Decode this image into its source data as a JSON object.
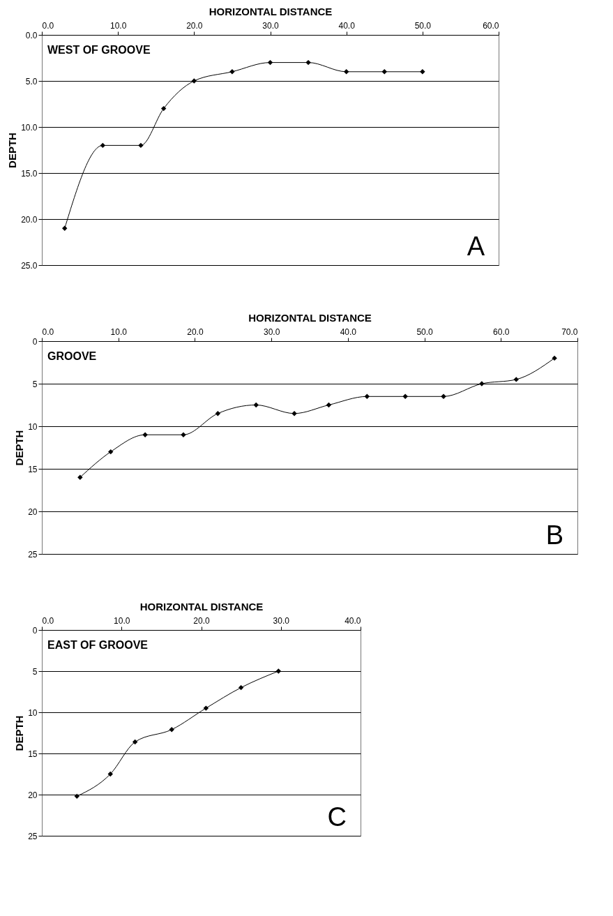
{
  "chart_data": [
    {
      "type": "line",
      "title": "WEST OF GROOVE",
      "annotations": [
        "A"
      ],
      "xlabel": "HORIZONTAL DISTANCE",
      "ylabel": "DEPTH",
      "x": [
        3,
        8,
        13,
        16,
        20,
        25,
        30,
        35,
        40,
        45,
        50
      ],
      "series": [
        {
          "color": "#000000",
          "values": [
            21,
            12,
            12,
            8,
            5,
            4,
            3,
            3,
            4,
            4,
            4
          ]
        }
      ],
      "xlim": [
        0,
        60
      ],
      "xticks": [
        {
          "value": 0,
          "label": "0.0"
        },
        {
          "value": 10,
          "label": "10.0"
        },
        {
          "value": 20,
          "label": "20.0"
        },
        {
          "value": 30,
          "label": "30.0"
        },
        {
          "value": 40,
          "label": "40.0"
        },
        {
          "value": 50,
          "label": "50.0"
        },
        {
          "value": 60,
          "label": "60.0"
        }
      ],
      "ylim": [
        25,
        0
      ],
      "yticks": [
        {
          "value": 0,
          "label": "0.0"
        },
        {
          "value": 5,
          "label": "5.0"
        },
        {
          "value": 10,
          "label": "10.0"
        },
        {
          "value": 15,
          "label": "15.0"
        },
        {
          "value": 20,
          "label": "20.0"
        },
        {
          "value": 25,
          "label": "25.0"
        }
      ],
      "grid": "y",
      "marker": "diamond",
      "line_style": "solid"
    },
    {
      "type": "line",
      "title": "GROOVE",
      "annotations": [
        "B"
      ],
      "xlabel": "HORIZONTAL DISTANCE",
      "ylabel": "DEPTH",
      "x": [
        5,
        9,
        13.5,
        18.5,
        23,
        28,
        33,
        37.5,
        42.5,
        47.5,
        52.5,
        57.5,
        62,
        67
      ],
      "series": [
        {
          "color": "#000000",
          "values": [
            16,
            13,
            11,
            11,
            8.5,
            7.5,
            8.5,
            7.5,
            6.5,
            6.5,
            6.5,
            5,
            4.5,
            2
          ]
        }
      ],
      "xlim": [
        0,
        70
      ],
      "xticks": [
        {
          "value": 0,
          "label": "0.0"
        },
        {
          "value": 10,
          "label": "10.0"
        },
        {
          "value": 20,
          "label": "20.0"
        },
        {
          "value": 30,
          "label": "30.0"
        },
        {
          "value": 40,
          "label": "40.0"
        },
        {
          "value": 50,
          "label": "50.0"
        },
        {
          "value": 60,
          "label": "60.0"
        },
        {
          "value": 70,
          "label": "70.0"
        }
      ],
      "ylim": [
        25,
        0
      ],
      "yticks": [
        0,
        5,
        10,
        15,
        20,
        25
      ],
      "grid": "y",
      "marker": "diamond",
      "line_style": "solid"
    },
    {
      "type": "line",
      "title": "EAST OF GROOVE",
      "annotations": [
        "C"
      ],
      "xlabel": "HORIZONTAL DISTANCE",
      "ylabel": "DEPTH",
      "x": [
        4.4,
        8.6,
        11.7,
        16.3,
        20.6,
        25,
        29.7
      ],
      "series": [
        {
          "color": "#000000",
          "values": [
            20.2,
            17.5,
            13.6,
            12.1,
            9.5,
            7,
            5
          ]
        }
      ],
      "xlim": [
        0,
        40
      ],
      "xticks": [
        {
          "value": 0,
          "label": "0.0"
        },
        {
          "value": 10,
          "label": "10.0"
        },
        {
          "value": 20,
          "label": "20.0"
        },
        {
          "value": 30,
          "label": "30.0"
        },
        {
          "value": 40,
          "label": "40.0"
        }
      ],
      "ylim": [
        25,
        0
      ],
      "yticks": [
        0,
        5,
        10,
        15,
        20,
        25
      ],
      "grid": "y",
      "marker": "diamond",
      "line_style": "solid"
    }
  ]
}
